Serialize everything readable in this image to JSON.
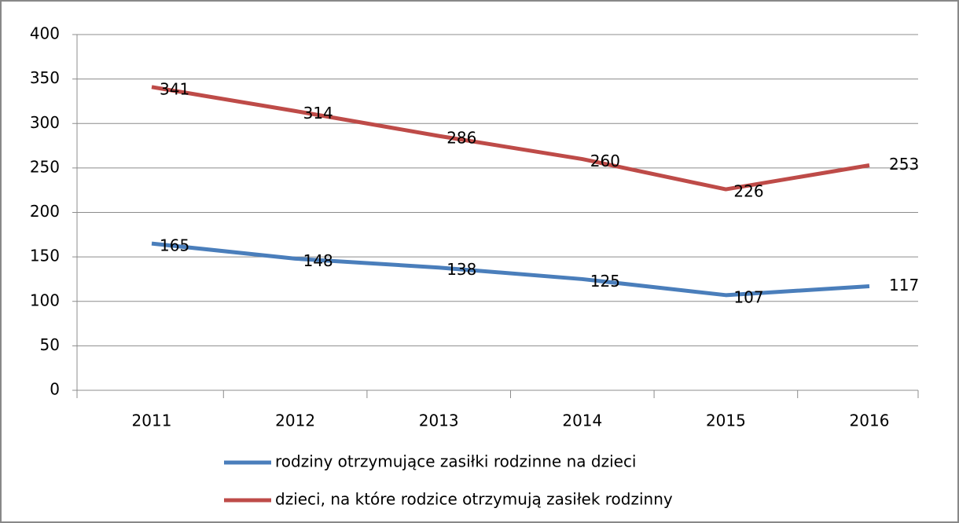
{
  "chart_data": {
    "type": "line",
    "categories": [
      "2011",
      "2012",
      "2013",
      "2014",
      "2015",
      "2016"
    ],
    "series": [
      {
        "name": "rodziny otrzymujące zasiłki rodzinne na dzieci",
        "color": "#4a7ebb",
        "values": [
          165,
          148,
          138,
          125,
          107,
          117
        ]
      },
      {
        "name": "dzieci, na które rodzice otrzymują zasiłek rodzinny",
        "color": "#be4b48",
        "values": [
          341,
          314,
          286,
          260,
          226,
          253
        ]
      }
    ],
    "ylim": [
      0,
      400
    ],
    "yticks": [
      0,
      50,
      100,
      150,
      200,
      250,
      300,
      350,
      400
    ],
    "grid": true,
    "legend": "bottom"
  }
}
